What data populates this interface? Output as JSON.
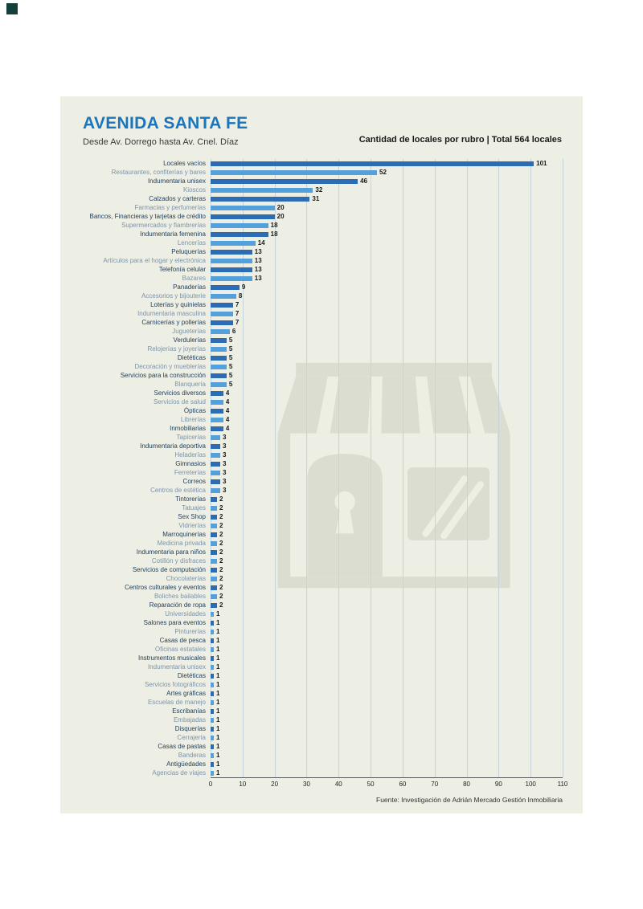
{
  "header": {
    "title": "AVENIDA SANTA FE",
    "subtitle": "Desde Av. Dorrego hasta Av. Cnel. Díaz",
    "chart_heading": "Cantidad de locales por rubro | Total 564 locales"
  },
  "footer": {
    "source": "Fuente: Investigación de Adrián Mercado Gestión Inmobiliaria"
  },
  "colors": {
    "title": "#1B75BC",
    "bar_dark": "#2B6CB4",
    "bar_light": "#54A0DB",
    "label_dark": "#1E3D5C",
    "label_light": "#7F94A7",
    "card_bg": "#EDEEE4",
    "grid_line": "#C6D3DA",
    "watermark": "#DCDDD1"
  },
  "chart_data": {
    "type": "bar",
    "orientation": "horizontal",
    "title": "Cantidad de locales por rubro | Total 564 locales",
    "total_locales": 564,
    "xlim": [
      0,
      110
    ],
    "xticks": [
      0,
      10,
      20,
      30,
      40,
      50,
      60,
      70,
      80,
      90,
      100,
      110
    ],
    "grid": true,
    "categories": [
      "Locales vacíos",
      "Restaurantes, confiterías y bares",
      "Indumentaria unisex",
      "Kioscos",
      "Calzados y carteras",
      "Farmacias y perfumerías",
      "Bancos, Financieras y tarjetas de crédito",
      "Supermercados y fiambrerías",
      "Indumentaria femenina",
      "Lencerías",
      "Peluquerías",
      "Artículos para el hogar y electrónica",
      "Telefonía celular",
      "Bazares",
      "Panaderías",
      "Accesorios y bijouterie",
      "Loterías y quinielas",
      "Indumentaria masculina",
      "Carnicerías y pollerías",
      "Jugueterías",
      "Verdulerías",
      "Relojerías y joyerías",
      "Dietéticas",
      "Decoración y mueblerías",
      "Servicios para la construcción",
      "Blanquería",
      "Servicios diversos",
      "Servicios de salud",
      "Ópticas",
      "Librerías",
      "Inmobiliarias",
      "Tapicerías",
      "Indumentaria deportiva",
      "Heladerías",
      "Gimnasios",
      "Ferreterías",
      "Correos",
      "Centros de estética",
      "Tintorerías",
      "Tatuajes",
      "Sex Shop",
      "Vidrierías",
      "Marroquinerías",
      "Medicina privada",
      "Indumentaria para niños",
      "Cotillón y disfraces",
      "Servicios de computación",
      "Chocolaterías",
      "Centros culturales y eventos",
      "Boliches bailables",
      "Reparación de ropa",
      "Universidades",
      "Salones para eventos",
      "Pinturerías",
      "Casas de pesca",
      "Oficinas estatales",
      "Instrumentos musicales",
      "Indumentaria unisex",
      "Dietéticas",
      "Servicios fotográficos",
      "Artes gráficas",
      "Escuelas de manejo",
      "Escribanías",
      "Embajadas",
      "Disquerías",
      "Cerrajería",
      "Casas de pastas",
      "Banderas",
      "Antigüedades",
      "Agencias de viajes"
    ],
    "values": [
      101,
      52,
      46,
      32,
      31,
      20,
      20,
      18,
      18,
      14,
      13,
      13,
      13,
      13,
      9,
      8,
      7,
      7,
      7,
      6,
      5,
      5,
      5,
      5,
      5,
      5,
      4,
      4,
      4,
      4,
      4,
      3,
      3,
      3,
      3,
      3,
      3,
      3,
      2,
      2,
      2,
      2,
      2,
      2,
      2,
      2,
      2,
      2,
      2,
      2,
      2,
      1,
      1,
      1,
      1,
      1,
      1,
      1,
      1,
      1,
      1,
      1,
      1,
      1,
      1,
      1,
      1,
      1,
      1,
      1
    ]
  }
}
